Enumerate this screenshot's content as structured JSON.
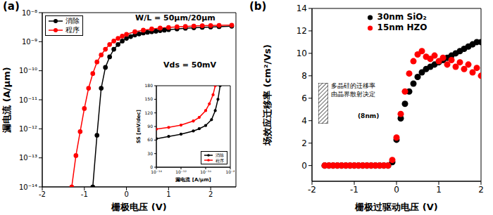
{
  "chart_data": [
    {
      "type": "line",
      "title": "(a)",
      "x_label": "栅极电压 (V)",
      "y_label": "漏电流 (A/μm)",
      "annotations": [
        "W/L = 50μm/20μm",
        "Vds = 50mV"
      ],
      "log": "y",
      "grid": false,
      "legend": "upper left",
      "xlim": [
        -2,
        2.6
      ],
      "xticks": [
        -2,
        -1,
        0,
        1,
        2
      ],
      "ylim": [
        1e-14,
        1e-08
      ],
      "yticks": [
        {
          "value": 1e-14,
          "label": "10⁻¹⁴"
        },
        {
          "value": 1e-13,
          "label": "10⁻¹³"
        },
        {
          "value": 1e-12,
          "label": "10⁻¹²"
        },
        {
          "value": 1e-11,
          "label": "10⁻¹¹"
        },
        {
          "value": 1e-10,
          "label": "10⁻¹⁰"
        },
        {
          "value": 1e-09,
          "label": "10⁻⁹"
        },
        {
          "value": 1e-08,
          "label": "10⁻⁸"
        }
      ],
      "series": [
        {
          "name": "消除",
          "color": "#000000",
          "marker": "circle",
          "line_style": "solid",
          "x": [
            -0.8,
            -0.7,
            -0.6,
            -0.5,
            -0.4,
            -0.3,
            -0.2,
            -0.1,
            0,
            0.1,
            0.2,
            0.3,
            0.4,
            0.5,
            0.6,
            0.7,
            0.8,
            0.9,
            1.0,
            1.2,
            1.4,
            1.6,
            1.8,
            2.0,
            2.2,
            2.5
          ],
          "values": [
            1e-14,
            6e-13,
            2.5e-11,
            1.3e-10,
            3e-10,
            5.5e-10,
            8e-10,
            1.05e-09,
            1.3e-09,
            1.5e-09,
            1.7e-09,
            1.85e-09,
            2e-09,
            2.1e-09,
            2.2e-09,
            2.3e-09,
            2.4e-09,
            2.5e-09,
            2.6e-09,
            2.75e-09,
            2.9e-09,
            3e-09,
            3.1e-09,
            3.2e-09,
            3.3e-09,
            3.4e-09
          ]
        },
        {
          "name": "程序",
          "color": "#ff0000",
          "marker": "circle",
          "line_style": "solid",
          "x": [
            -1.3,
            -1.2,
            -1.1,
            -1.0,
            -0.9,
            -0.8,
            -0.7,
            -0.6,
            -0.5,
            -0.4,
            -0.3,
            -0.2,
            -0.1,
            0,
            0.2,
            0.4,
            0.6,
            0.8,
            1.0,
            1.2,
            1.4,
            1.6,
            1.8,
            2.0,
            2.2,
            2.5
          ],
          "values": [
            1e-14,
            1.2e-13,
            8e-13,
            5e-12,
            2.5e-11,
            8e-11,
            2e-10,
            3.5e-10,
            5.5e-10,
            8e-10,
            1.05e-09,
            1.3e-09,
            1.55e-09,
            1.8e-09,
            2.2e-09,
            2.5e-09,
            2.75e-09,
            2.95e-09,
            3.1e-09,
            3.25e-09,
            3.35e-09,
            3.45e-09,
            3.55e-09,
            3.6e-09,
            3.65e-09,
            3.7e-09
          ]
        }
      ]
    },
    {
      "type": "line",
      "x_label": "漏电流 [A/μm]",
      "y_label": "SS [mV/dec]",
      "log": "x",
      "grid": false,
      "legend": "lower right",
      "xlim": [
        1e-14,
        1e-08
      ],
      "xticks": [
        {
          "value": 1e-14,
          "label": "10⁻¹⁴"
        },
        {
          "value": 1e-12,
          "label": "10⁻¹²"
        },
        {
          "value": 1e-10,
          "label": "10⁻¹⁰"
        },
        {
          "value": 1e-08,
          "label": "10⁻⁸"
        }
      ],
      "ylim": [
        0,
        180
      ],
      "yticks": [
        0,
        30,
        60,
        90,
        120,
        150,
        180
      ],
      "series": [
        {
          "name": "消除",
          "color": "#000000",
          "marker": "circle",
          "line_style": "solid",
          "x": [
            1e-14,
            1e-13,
            1e-12,
            1e-11,
            3e-11,
            1e-10,
            3e-10,
            6e-10,
            1e-09,
            1.5e-09
          ],
          "values": [
            63,
            68,
            73,
            80,
            85,
            92,
            105,
            125,
            150,
            180
          ]
        },
        {
          "name": "程序",
          "color": "#ff0000",
          "marker": "circle",
          "line_style": "solid",
          "x": [
            1e-14,
            1e-13,
            1e-12,
            1e-11,
            3e-11,
            1e-10,
            2e-10,
            4e-10,
            6e-10
          ],
          "values": [
            84,
            88,
            93,
            102,
            110,
            125,
            140,
            160,
            180
          ]
        }
      ]
    },
    {
      "type": "scatter",
      "title": "(b)",
      "x_label": "栅极过驱动电压 (V)",
      "y_label": "场效应迁移率 (cm²/Vs)",
      "annotations": [
        "多晶硅的迁移率\n由晶界散射决定",
        "(8nm)"
      ],
      "grid": false,
      "legend": "upper center",
      "xlim": [
        -2,
        2
      ],
      "xticks": [
        -2,
        -1,
        0,
        1,
        2
      ],
      "ylim": [
        -1.4,
        14
      ],
      "yticks": [
        0,
        2,
        4,
        6,
        8,
        10,
        12,
        14
      ],
      "series": [
        {
          "name": "30nm SiO₂",
          "color": "#000000",
          "marker": "circle",
          "x": [
            -1.7,
            -1.6,
            -1.5,
            -1.4,
            -1.3,
            -1.2,
            -1.1,
            -1.0,
            -0.9,
            -0.8,
            -0.7,
            -0.6,
            -0.5,
            -0.4,
            -0.3,
            -0.2,
            -0.1,
            0,
            0.1,
            0.2,
            0.3,
            0.4,
            0.5,
            0.6,
            0.7,
            0.8,
            0.9,
            1.0,
            1.1,
            1.2,
            1.3,
            1.4,
            1.5,
            1.6,
            1.7,
            1.8,
            1.9,
            2.0
          ],
          "values": [
            0,
            0,
            0,
            0,
            0,
            0,
            0,
            0,
            0,
            0,
            0,
            0,
            0,
            0,
            0,
            0,
            0.3,
            2.3,
            4.2,
            5.5,
            6.6,
            7.3,
            7.9,
            8.3,
            8.6,
            8.8,
            9.0,
            9.2,
            9.4,
            9.6,
            9.8,
            10.0,
            10.2,
            10.4,
            10.6,
            10.8,
            11.0,
            11.0
          ]
        },
        {
          "name": "15nm HZO",
          "color": "#ff0000",
          "marker": "circle",
          "x": [
            -1.7,
            -1.6,
            -1.5,
            -1.4,
            -1.3,
            -1.2,
            -1.1,
            -1.0,
            -0.9,
            -0.8,
            -0.7,
            -0.6,
            -0.5,
            -0.4,
            -0.3,
            -0.2,
            -0.1,
            0,
            0.1,
            0.2,
            0.3,
            0.4,
            0.5,
            0.6,
            0.7,
            0.8,
            0.9,
            1.0,
            1.1,
            1.2,
            1.3,
            1.4,
            1.5,
            1.6,
            1.7,
            1.8,
            1.9,
            2.0
          ],
          "values": [
            0,
            0,
            0,
            0,
            0,
            0,
            0,
            0,
            0,
            0,
            0,
            0,
            0,
            0,
            0,
            0,
            0.5,
            2.5,
            4.6,
            6.6,
            8.2,
            9.3,
            9.9,
            10.2,
            9.7,
            9.5,
            9.8,
            9.3,
            9.6,
            9.0,
            9.4,
            8.8,
            9.2,
            8.6,
            9.0,
            8.3,
            8.7,
            8.0
          ]
        }
      ]
    }
  ]
}
